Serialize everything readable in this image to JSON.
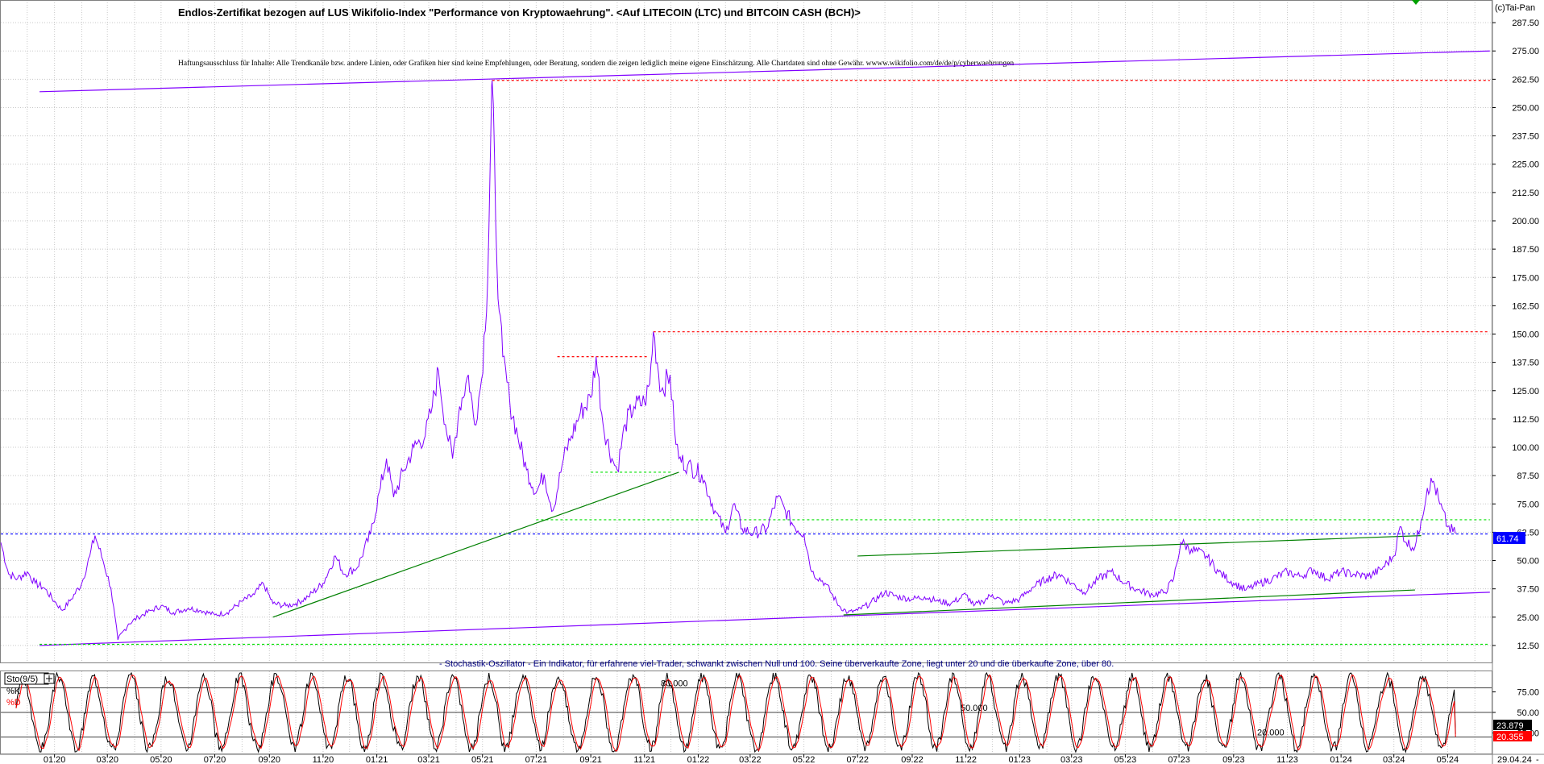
{
  "header": {
    "title": "Endlos-Zertifikat bezogen auf LUS Wikifolio-Index \"Performance von Kryptowaehrung\". <Auf LITECOIN (LTC) und BITCOIN CASH (BCH)>",
    "disclaimer": "Haftungsausschluss für Inhalte: Alle Trendkanäle bzw. andere Linien, oder Grafiken hier sind keine Empfehlungen, oder Beratung, sondern die zeigen lediglich meine eigene Einschätzung. Alle Chartdaten sind ohne Gewähr.  wwww.wikifolio.com/de/de/p/cyberwaehrungen",
    "copyright": "(c)Tai-Pan"
  },
  "colors": {
    "price_line": "#8000ff",
    "trend_purple": "#8000ff",
    "trend_green": "#008000",
    "resistance_red": "#ff0000",
    "support_green": "#00e000",
    "current_blue": "#0000ff",
    "stoch_k": "#000000",
    "stoch_d": "#ff0000",
    "grid": "#c8c8c8"
  },
  "chart_data": [
    {
      "type": "line",
      "name": "price",
      "y_ticks": [
        "287.50",
        "275.00",
        "262.50",
        "250.00",
        "237.50",
        "225.00",
        "212.50",
        "200.00",
        "187.50",
        "175.00",
        "162.50",
        "150.00",
        "137.50",
        "125.00",
        "112.50",
        "100.00",
        "87.50",
        "75.00",
        "62.50",
        "50.00",
        "37.50",
        "25.00",
        "12.50"
      ],
      "ylim": [
        5,
        297.5
      ],
      "x_ticks": [
        "01.20",
        "03.20",
        "05.20",
        "07.20",
        "09.20",
        "11.20",
        "01.21",
        "03.21",
        "05.21",
        "07.21",
        "09.21",
        "11.21",
        "01.22",
        "03.22",
        "05.22",
        "07.22",
        "09.22",
        "11.22",
        "01.23",
        "03.23",
        "05.23",
        "07.23",
        "09.23",
        "11.23",
        "01.24",
        "03.24",
        "05.24"
      ],
      "x_range": [
        "2019-11-01",
        "2024-06-20"
      ],
      "last_value": "61.74",
      "points": [
        [
          "2019-11-01",
          58
        ],
        [
          "2019-11-10",
          44
        ],
        [
          "2019-11-20",
          42
        ],
        [
          "2019-12-01",
          45
        ],
        [
          "2019-12-10",
          40
        ],
        [
          "2019-12-20",
          38
        ],
        [
          "2020-01-01",
          32
        ],
        [
          "2020-01-10",
          28
        ],
        [
          "2020-01-20",
          33
        ],
        [
          "2020-02-01",
          40
        ],
        [
          "2020-02-10",
          52
        ],
        [
          "2020-02-16",
          61
        ],
        [
          "2020-02-25",
          50
        ],
        [
          "2020-03-05",
          38
        ],
        [
          "2020-03-13",
          15
        ],
        [
          "2020-03-25",
          22
        ],
        [
          "2020-04-05",
          25
        ],
        [
          "2020-04-20",
          28
        ],
        [
          "2020-05-01",
          30
        ],
        [
          "2020-05-15",
          27
        ],
        [
          "2020-06-01",
          29
        ],
        [
          "2020-06-15",
          28
        ],
        [
          "2020-07-01",
          26
        ],
        [
          "2020-07-15",
          27
        ],
        [
          "2020-08-01",
          32
        ],
        [
          "2020-08-15",
          35
        ],
        [
          "2020-08-25",
          40
        ],
        [
          "2020-09-05",
          31
        ],
        [
          "2020-09-20",
          30
        ],
        [
          "2020-10-01",
          31
        ],
        [
          "2020-10-15",
          34
        ],
        [
          "2020-11-01",
          40
        ],
        [
          "2020-11-15",
          52
        ],
        [
          "2020-11-25",
          44
        ],
        [
          "2020-12-10",
          47
        ],
        [
          "2020-12-25",
          62
        ],
        [
          "2021-01-05",
          82
        ],
        [
          "2021-01-12",
          95
        ],
        [
          "2021-01-20",
          78
        ],
        [
          "2021-02-01",
          90
        ],
        [
          "2021-02-12",
          100
        ],
        [
          "2021-02-25",
          105
        ],
        [
          "2021-03-05",
          118
        ],
        [
          "2021-03-12",
          134
        ],
        [
          "2021-03-20",
          110
        ],
        [
          "2021-03-28",
          95
        ],
        [
          "2021-04-05",
          118
        ],
        [
          "2021-04-15",
          132
        ],
        [
          "2021-04-22",
          110
        ],
        [
          "2021-04-30",
          130
        ],
        [
          "2021-05-07",
          175
        ],
        [
          "2021-05-11",
          250
        ],
        [
          "2021-05-12",
          262
        ],
        [
          "2021-05-16",
          200
        ],
        [
          "2021-05-20",
          160
        ],
        [
          "2021-05-24",
          140
        ],
        [
          "2021-06-01",
          120
        ],
        [
          "2021-06-10",
          105
        ],
        [
          "2021-06-20",
          90
        ],
        [
          "2021-07-01",
          80
        ],
        [
          "2021-07-10",
          88
        ],
        [
          "2021-07-20",
          72
        ],
        [
          "2021-08-01",
          95
        ],
        [
          "2021-08-10",
          105
        ],
        [
          "2021-08-20",
          115
        ],
        [
          "2021-09-01",
          122
        ],
        [
          "2021-09-07",
          140
        ],
        [
          "2021-09-15",
          110
        ],
        [
          "2021-09-25",
          95
        ],
        [
          "2021-10-01",
          90
        ],
        [
          "2021-10-10",
          110
        ],
        [
          "2021-10-20",
          118
        ],
        [
          "2021-11-01",
          120
        ],
        [
          "2021-11-07",
          128
        ],
        [
          "2021-11-11",
          151
        ],
        [
          "2021-11-20",
          125
        ],
        [
          "2021-11-30",
          132
        ],
        [
          "2021-12-05",
          108
        ],
        [
          "2021-12-10",
          95
        ],
        [
          "2021-12-20",
          92
        ],
        [
          "2022-01-05",
          88
        ],
        [
          "2022-01-20",
          72
        ],
        [
          "2022-02-01",
          62
        ],
        [
          "2022-02-10",
          75
        ],
        [
          "2022-02-20",
          64
        ],
        [
          "2022-03-05",
          62
        ],
        [
          "2022-03-20",
          64
        ],
        [
          "2022-04-01",
          78
        ],
        [
          "2022-04-10",
          72
        ],
        [
          "2022-04-20",
          65
        ],
        [
          "2022-05-01",
          62
        ],
        [
          "2022-05-10",
          45
        ],
        [
          "2022-05-25",
          40
        ],
        [
          "2022-06-10",
          30
        ],
        [
          "2022-06-20",
          27
        ],
        [
          "2022-07-01",
          28
        ],
        [
          "2022-07-15",
          31
        ],
        [
          "2022-08-01",
          36
        ],
        [
          "2022-08-15",
          34
        ],
        [
          "2022-09-01",
          33
        ],
        [
          "2022-09-15",
          34
        ],
        [
          "2022-10-01",
          32
        ],
        [
          "2022-10-15",
          31
        ],
        [
          "2022-11-01",
          35
        ],
        [
          "2022-11-10",
          30
        ],
        [
          "2022-11-20",
          32
        ],
        [
          "2022-12-01",
          35
        ],
        [
          "2022-12-15",
          31
        ],
        [
          "2023-01-01",
          33
        ],
        [
          "2023-01-15",
          38
        ],
        [
          "2023-02-01",
          42
        ],
        [
          "2023-02-15",
          44
        ],
        [
          "2023-03-01",
          40
        ],
        [
          "2023-03-15",
          36
        ],
        [
          "2023-04-01",
          42
        ],
        [
          "2023-04-15",
          45
        ],
        [
          "2023-05-01",
          40
        ],
        [
          "2023-05-15",
          37
        ],
        [
          "2023-06-01",
          35
        ],
        [
          "2023-06-15",
          36
        ],
        [
          "2023-06-25",
          42
        ],
        [
          "2023-07-03",
          58
        ],
        [
          "2023-07-15",
          55
        ],
        [
          "2023-08-01",
          52
        ],
        [
          "2023-08-15",
          45
        ],
        [
          "2023-09-01",
          40
        ],
        [
          "2023-09-15",
          37
        ],
        [
          "2023-10-01",
          40
        ],
        [
          "2023-10-15",
          42
        ],
        [
          "2023-11-01",
          45
        ],
        [
          "2023-11-15",
          43
        ],
        [
          "2023-12-01",
          46
        ],
        [
          "2023-12-15",
          42
        ],
        [
          "2024-01-01",
          45
        ],
        [
          "2024-01-15",
          44
        ],
        [
          "2024-02-01",
          43
        ],
        [
          "2024-02-15",
          46
        ],
        [
          "2024-03-01",
          52
        ],
        [
          "2024-03-08",
          65
        ],
        [
          "2024-03-15",
          58
        ],
        [
          "2024-03-25",
          56
        ],
        [
          "2024-04-01",
          68
        ],
        [
          "2024-04-08",
          82
        ],
        [
          "2024-04-15",
          85
        ],
        [
          "2024-04-22",
          75
        ],
        [
          "2024-05-01",
          65
        ],
        [
          "2024-05-10",
          61.74
        ]
      ],
      "lines": [
        {
          "color": "trend_purple",
          "style": "solid",
          "from": [
            "2019-12-15",
            257
          ],
          "to": [
            "2024-06-18",
            275
          ]
        },
        {
          "color": "trend_purple",
          "style": "solid",
          "from": [
            "2019-12-15",
            12.5
          ],
          "to": [
            "2024-06-18",
            36
          ]
        },
        {
          "color": "resistance_red",
          "style": "dashed",
          "from": [
            "2021-05-12",
            262
          ],
          "to": [
            "2024-06-18",
            262
          ]
        },
        {
          "color": "resistance_red",
          "style": "dashed",
          "from": [
            "2021-11-11",
            151
          ],
          "to": [
            "2024-06-18",
            151
          ]
        },
        {
          "color": "resistance_red",
          "style": "dashed",
          "from": [
            "2021-07-25",
            140
          ],
          "to": [
            "2021-11-05",
            140
          ]
        },
        {
          "color": "current_blue",
          "style": "dashed",
          "from": [
            "2019-11-01",
            61.74
          ],
          "to": [
            "2024-06-18",
            61.74
          ]
        },
        {
          "color": "support_green",
          "style": "dashed",
          "from": [
            "2021-07-01",
            68
          ],
          "to": [
            "2024-06-18",
            68
          ]
        },
        {
          "color": "support_green",
          "style": "dashed",
          "from": [
            "2021-09-01",
            89
          ],
          "to": [
            "2021-12-01",
            89
          ]
        },
        {
          "color": "support_green",
          "style": "dashed",
          "from": [
            "2019-12-15",
            13
          ],
          "to": [
            "2024-06-18",
            13
          ]
        },
        {
          "color": "trend_green",
          "style": "solid",
          "from": [
            "2020-09-05",
            25
          ],
          "to": [
            "2021-12-10",
            89
          ]
        },
        {
          "color": "trend_green",
          "style": "solid",
          "from": [
            "2022-07-01",
            52
          ],
          "to": [
            "2024-04-01",
            61
          ]
        },
        {
          "color": "trend_green",
          "style": "solid",
          "from": [
            "2022-06-15",
            26
          ],
          "to": [
            "2024-03-25",
            37
          ]
        }
      ]
    },
    {
      "type": "line",
      "name": "stochastic",
      "caption": "- Stochastik-Oszillator - Ein Indikator, für erfahrene viel-Trader, schwankt zwischen Null und 100. Seine überverkaufte Zone, liegt unter 20 und die überkaufte Zone, über 80.",
      "indicator_label": "Sto(9/5)",
      "k_label": "%K",
      "d_label": "%D",
      "y_ticks": [
        "75.00",
        "50.00",
        "25.00"
      ],
      "ylim": [
        0,
        100
      ],
      "levels": [
        {
          "value": 80,
          "label": "80.000"
        },
        {
          "value": 50,
          "label": "50.000"
        },
        {
          "value": 20,
          "label": "20.000"
        }
      ],
      "k_last": "23.879",
      "d_last": "20.355"
    }
  ],
  "footer": {
    "date_label": "29.04.24",
    "dash": "-"
  }
}
